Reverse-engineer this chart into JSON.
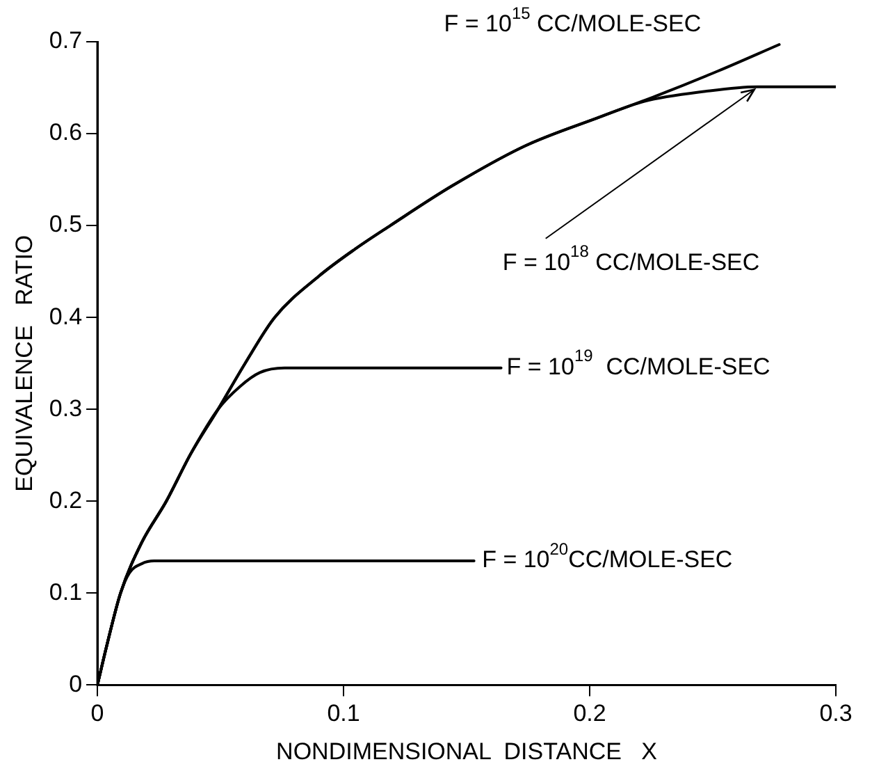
{
  "chart_data": {
    "type": "line",
    "xlabel": "NONDIMENSIONAL  DISTANCE   X",
    "ylabel": "EQUIVALENCE   RATIO",
    "xlim": [
      0,
      0.3
    ],
    "ylim": [
      0,
      0.7
    ],
    "xticks": [
      0,
      0.1,
      0.2,
      0.3
    ],
    "yticks": [
      0,
      0.1,
      0.2,
      0.3,
      0.4,
      0.5,
      0.6,
      0.7
    ],
    "grid": false,
    "legend": false,
    "marker": "none",
    "line_style": "solid",
    "series": [
      {
        "color": "#000000",
        "x": [
          0,
          0.004,
          0.0094,
          0.018,
          0.028,
          0.038,
          0.049,
          0.06,
          0.072,
          0.09,
          0.105,
          0.119,
          0.144,
          0.174,
          0.203,
          0.227,
          0.252,
          0.277
        ],
        "values": [
          0,
          0.045,
          0.1,
          0.155,
          0.2,
          0.252,
          0.3,
          0.35,
          0.4,
          0.445,
          0.475,
          0.5,
          0.543,
          0.587,
          0.617,
          0.641,
          0.668,
          0.697
        ]
      },
      {
        "color": "#000000",
        "x": [
          0,
          0.004,
          0.0094,
          0.018,
          0.028,
          0.038,
          0.049,
          0.06,
          0.072,
          0.09,
          0.105,
          0.119,
          0.144,
          0.174,
          0.203,
          0.222,
          0.247,
          0.268,
          0.3
        ],
        "values": [
          0,
          0.045,
          0.1,
          0.155,
          0.2,
          0.252,
          0.3,
          0.35,
          0.4,
          0.445,
          0.475,
          0.5,
          0.543,
          0.587,
          0.617,
          0.635,
          0.646,
          0.651,
          0.651
        ]
      },
      {
        "color": "#000000",
        "x": [
          0,
          0.004,
          0.0094,
          0.018,
          0.028,
          0.038,
          0.049,
          0.058,
          0.066,
          0.076,
          0.1,
          0.164
        ],
        "values": [
          0,
          0.045,
          0.1,
          0.155,
          0.2,
          0.252,
          0.3,
          0.325,
          0.34,
          0.345,
          0.345,
          0.345
        ]
      },
      {
        "color": "#000000",
        "x": [
          0,
          0.004,
          0.0094,
          0.013,
          0.018,
          0.023,
          0.05,
          0.153
        ],
        "values": [
          0,
          0.045,
          0.1,
          0.122,
          0.132,
          0.135,
          0.135,
          0.135
        ]
      }
    ],
    "annotations": [
      "F = 10$^{15}$ CC/MOLE-SEC",
      {
        "text": "F = 10$^{18}$ CC/MOLE-SEC",
        "x": 0.268,
        "y": 0.651
      },
      {
        "text": "F = 10$^{19}$  CC/MOLE-SEC",
        "x": 0.164,
        "y": 0.345
      },
      {
        "text": "F = 10$^{20}$CC/MOLE-SEC",
        "x": 0.154,
        "y": 0.135
      }
    ]
  }
}
